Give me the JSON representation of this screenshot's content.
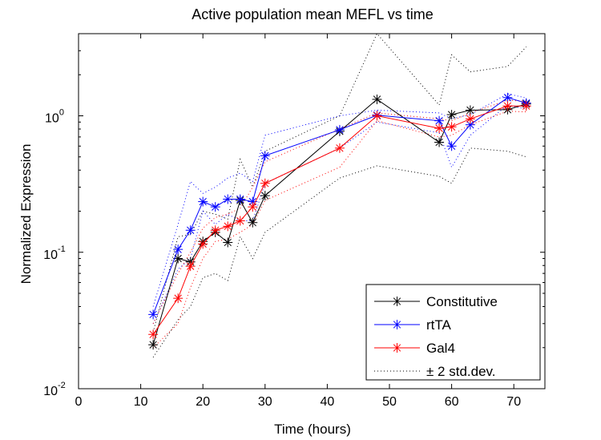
{
  "chart_data": {
    "type": "line",
    "title": "Active population mean MEFL vs time",
    "xlabel": "Time (hours)",
    "ylabel": "Normalized Expression",
    "xlim": [
      0,
      75
    ],
    "ylim": [
      0.01,
      4
    ],
    "yscale": "log",
    "grid": false,
    "legend_position": "bottom-right",
    "x_ticks": [
      "0",
      "10",
      "20",
      "30",
      "40",
      "50",
      "60",
      "70"
    ],
    "y_ticks": [
      {
        "base": "10",
        "exp": "-2"
      },
      {
        "base": "10",
        "exp": "-1"
      },
      {
        "base": "10",
        "exp": "0"
      }
    ],
    "series": [
      {
        "name": "Constitutive",
        "color": "#000000",
        "marker": "asterisk",
        "x": [
          12,
          16,
          18,
          20,
          22,
          24,
          26,
          28,
          30,
          42,
          48,
          58,
          60,
          63,
          69,
          72
        ],
        "y": [
          0.021,
          0.09,
          0.085,
          0.12,
          0.14,
          0.118,
          0.24,
          0.165,
          0.26,
          0.77,
          1.32,
          0.64,
          1.02,
          1.1,
          1.11,
          1.22
        ]
      },
      {
        "name": "rtTA",
        "color": "#0000ff",
        "marker": "asterisk",
        "x": [
          12,
          16,
          18,
          20,
          22,
          24,
          26,
          28,
          30,
          42,
          48,
          58,
          60,
          63,
          69,
          72
        ],
        "y": [
          0.035,
          0.105,
          0.145,
          0.235,
          0.215,
          0.245,
          0.245,
          0.235,
          0.51,
          0.79,
          1.01,
          0.92,
          0.6,
          0.86,
          1.36,
          1.24
        ]
      },
      {
        "name": "Gal4",
        "color": "#ff0000",
        "marker": "asterisk",
        "x": [
          12,
          16,
          18,
          20,
          22,
          24,
          26,
          28,
          30,
          42,
          48,
          58,
          60,
          63,
          69,
          72
        ],
        "y": [
          0.025,
          0.046,
          0.079,
          0.115,
          0.145,
          0.155,
          0.17,
          0.215,
          0.32,
          0.58,
          1.0,
          0.81,
          0.83,
          0.95,
          1.18,
          1.18
        ]
      },
      {
        "name": "± 2 std.dev.",
        "color": "#000000",
        "style": "dotted",
        "bands": [
          {
            "color": "#000000",
            "upper": [
              0.026,
              0.13,
              0.135,
              0.2,
              0.19,
              0.175,
              0.48,
              0.3,
              0.55,
              1.0,
              4.0,
              1.2,
              2.8,
              2.1,
              2.3,
              3.2
            ],
            "lower": [
              0.017,
              0.032,
              0.04,
              0.065,
              0.07,
              0.062,
              0.13,
              0.09,
              0.14,
              0.35,
              0.43,
              0.36,
              0.32,
              0.58,
              0.55,
              0.5
            ]
          },
          {
            "color": "#0000ff",
            "upper": [
              0.04,
              0.16,
              0.33,
              0.27,
              0.3,
              0.35,
              0.38,
              0.33,
              0.72,
              1.0,
              1.1,
              1.05,
              0.95,
              1.02,
              1.45,
              1.35
            ],
            "lower": [
              0.03,
              0.075,
              0.09,
              0.2,
              0.16,
              0.19,
              0.17,
              0.17,
              0.32,
              0.58,
              0.9,
              0.75,
              0.42,
              0.72,
              1.2,
              1.12
            ]
          },
          {
            "color": "#ff0000",
            "upper": [
              0.03,
              0.07,
              0.1,
              0.15,
              0.18,
              0.19,
              0.21,
              0.3,
              0.46,
              0.8,
              1.05,
              0.95,
              0.92,
              1.05,
              1.3,
              1.28
            ],
            "lower": [
              0.02,
              0.03,
              0.055,
              0.09,
              0.12,
              0.125,
              0.14,
              0.16,
              0.24,
              0.42,
              0.92,
              0.7,
              0.72,
              0.86,
              1.08,
              1.07
            ]
          }
        ]
      }
    ]
  }
}
